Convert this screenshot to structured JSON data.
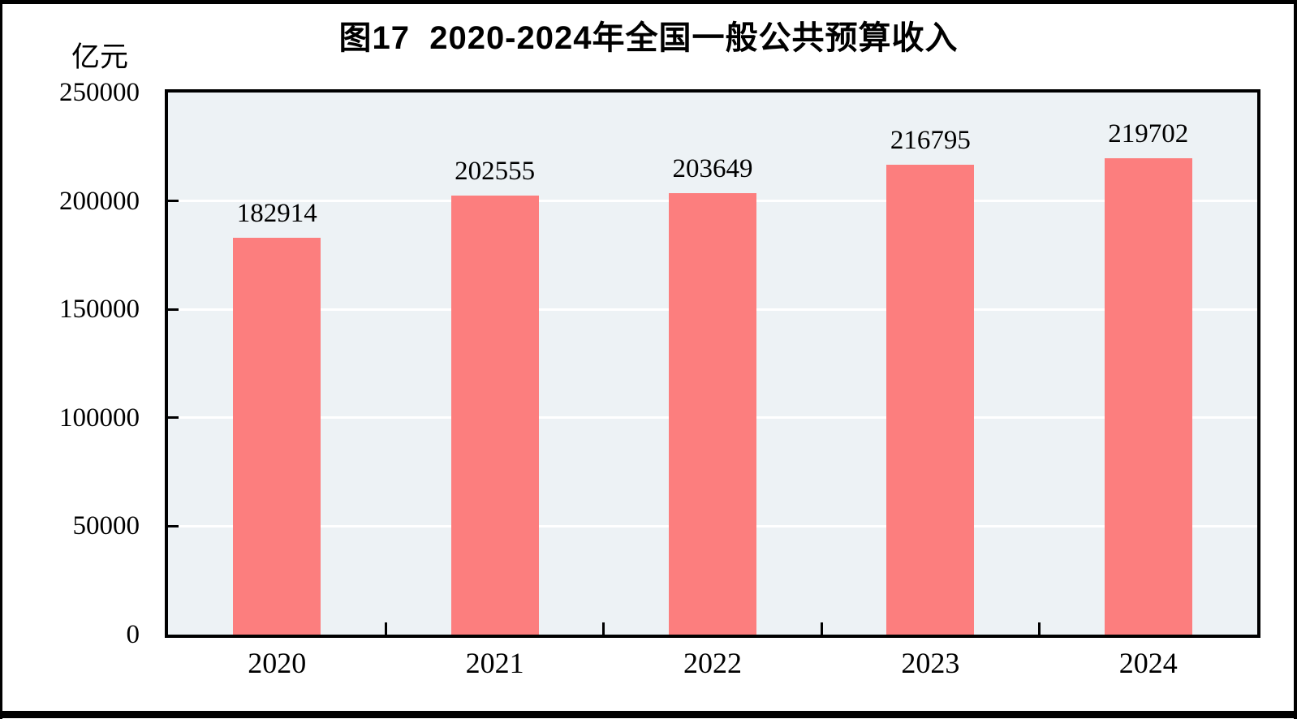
{
  "figure": {
    "title": "图17  2020-2024年全国一般公共预算收入",
    "unit_label": "亿元"
  },
  "chart_data": {
    "type": "bar",
    "title": "图17  2020-2024年全国一般公共预算收入",
    "unit_label": "亿元",
    "categories": [
      "2020",
      "2021",
      "2022",
      "2023",
      "2024"
    ],
    "values": [
      182914,
      202555,
      203649,
      216795,
      219702
    ],
    "value_labels": [
      "182914",
      "202555",
      "203649",
      "216795",
      "219702"
    ],
    "xlabel": "",
    "ylabel": "亿元",
    "ylim": [
      0,
      250000
    ],
    "ytick_step": 50000,
    "yticks": [
      0,
      50000,
      100000,
      150000,
      200000,
      250000
    ],
    "ytick_labels": [
      "0",
      "50000",
      "100000",
      "150000",
      "200000",
      "250000"
    ],
    "grid": true,
    "grid_orientation": "horizontal",
    "legend_position": "none",
    "colors": {
      "bar_fill": "#FC7E7E",
      "plot_background": "#EDF2F5",
      "gridline": "#FFFFFF",
      "axis_frame": "#000000",
      "text": "#000000",
      "page_background": "#FFFFFF"
    }
  }
}
